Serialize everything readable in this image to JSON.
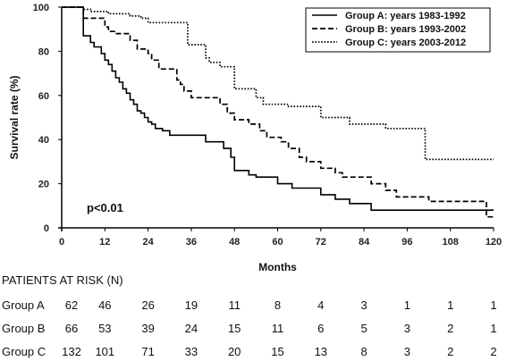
{
  "chart_data": {
    "type": "line",
    "ylabel": "Survival rate (%)",
    "xlabel": "Months",
    "xlim": [
      0,
      120
    ],
    "ylim": [
      0,
      100
    ],
    "x_ticks": [
      "0",
      "12",
      "24",
      "36",
      "48",
      "60",
      "72",
      "84",
      "96",
      "108",
      "120"
    ],
    "y_ticks": [
      "0",
      "20",
      "40",
      "60",
      "80",
      "100"
    ],
    "grid": false,
    "legend_position": "top-right",
    "annotation": "p<0.01",
    "series": [
      {
        "name": "Group A: years 1983-1992",
        "style": "solid",
        "points": [
          [
            0,
            100
          ],
          [
            6,
            100
          ],
          [
            6,
            87
          ],
          [
            8,
            87
          ],
          [
            8,
            84
          ],
          [
            9,
            84
          ],
          [
            9,
            82
          ],
          [
            11,
            82
          ],
          [
            11,
            79
          ],
          [
            12,
            79
          ],
          [
            12,
            76
          ],
          [
            13,
            76
          ],
          [
            13,
            74
          ],
          [
            14,
            74
          ],
          [
            14,
            71
          ],
          [
            15,
            71
          ],
          [
            15,
            68
          ],
          [
            16,
            68
          ],
          [
            16,
            66
          ],
          [
            17,
            66
          ],
          [
            17,
            63
          ],
          [
            18,
            63
          ],
          [
            18,
            61
          ],
          [
            19,
            61
          ],
          [
            19,
            58
          ],
          [
            20,
            58
          ],
          [
            20,
            56
          ],
          [
            21,
            56
          ],
          [
            21,
            53
          ],
          [
            22,
            53
          ],
          [
            22,
            52
          ],
          [
            23,
            52
          ],
          [
            23,
            50
          ],
          [
            24,
            50
          ],
          [
            24,
            48
          ],
          [
            25,
            48
          ],
          [
            25,
            47
          ],
          [
            26,
            47
          ],
          [
            26,
            45
          ],
          [
            28,
            45
          ],
          [
            28,
            44
          ],
          [
            30,
            44
          ],
          [
            30,
            42
          ],
          [
            40,
            42
          ],
          [
            40,
            39
          ],
          [
            45,
            39
          ],
          [
            45,
            36
          ],
          [
            47,
            36
          ],
          [
            47,
            32
          ],
          [
            48,
            32
          ],
          [
            48,
            26
          ],
          [
            52,
            26
          ],
          [
            52,
            24
          ],
          [
            54,
            24
          ],
          [
            54,
            23
          ],
          [
            60,
            23
          ],
          [
            60,
            20
          ],
          [
            64,
            20
          ],
          [
            64,
            18
          ],
          [
            72,
            18
          ],
          [
            72,
            15
          ],
          [
            76,
            15
          ],
          [
            76,
            13
          ],
          [
            80,
            13
          ],
          [
            80,
            11
          ],
          [
            86,
            11
          ],
          [
            86,
            8
          ],
          [
            120,
            8
          ]
        ]
      },
      {
        "name": "Group B: years 1993-2002",
        "style": "dashed",
        "points": [
          [
            0,
            100
          ],
          [
            6,
            100
          ],
          [
            6,
            95
          ],
          [
            12,
            95
          ],
          [
            12,
            91
          ],
          [
            13,
            91
          ],
          [
            13,
            89
          ],
          [
            15,
            89
          ],
          [
            15,
            88
          ],
          [
            19,
            88
          ],
          [
            19,
            85
          ],
          [
            21,
            85
          ],
          [
            21,
            81
          ],
          [
            24,
            81
          ],
          [
            24,
            79
          ],
          [
            25,
            79
          ],
          [
            25,
            76
          ],
          [
            27,
            76
          ],
          [
            27,
            72
          ],
          [
            32,
            72
          ],
          [
            32,
            67
          ],
          [
            33,
            67
          ],
          [
            33,
            65
          ],
          [
            34,
            65
          ],
          [
            34,
            62
          ],
          [
            36,
            62
          ],
          [
            36,
            59
          ],
          [
            44,
            59
          ],
          [
            44,
            56
          ],
          [
            46,
            56
          ],
          [
            46,
            52
          ],
          [
            48,
            52
          ],
          [
            48,
            49
          ],
          [
            52,
            49
          ],
          [
            52,
            47
          ],
          [
            55,
            47
          ],
          [
            55,
            44
          ],
          [
            57,
            44
          ],
          [
            57,
            41
          ],
          [
            61,
            41
          ],
          [
            61,
            39
          ],
          [
            63,
            39
          ],
          [
            63,
            36
          ],
          [
            66,
            36
          ],
          [
            66,
            32
          ],
          [
            68,
            32
          ],
          [
            68,
            30
          ],
          [
            72,
            30
          ],
          [
            72,
            27
          ],
          [
            76,
            27
          ],
          [
            76,
            25
          ],
          [
            78,
            25
          ],
          [
            78,
            23
          ],
          [
            86,
            23
          ],
          [
            86,
            20
          ],
          [
            90,
            20
          ],
          [
            90,
            17
          ],
          [
            93,
            17
          ],
          [
            93,
            14
          ],
          [
            102,
            14
          ],
          [
            102,
            12
          ],
          [
            118,
            12
          ],
          [
            118,
            5
          ],
          [
            120,
            5
          ]
        ]
      },
      {
        "name": "Group C: years 2003-2012",
        "style": "dotted",
        "points": [
          [
            0,
            100
          ],
          [
            6,
            100
          ],
          [
            6,
            99
          ],
          [
            8,
            99
          ],
          [
            8,
            98
          ],
          [
            13,
            98
          ],
          [
            13,
            97
          ],
          [
            19,
            97
          ],
          [
            19,
            96
          ],
          [
            22,
            96
          ],
          [
            22,
            95
          ],
          [
            24,
            95
          ],
          [
            24,
            93
          ],
          [
            35,
            93
          ],
          [
            35,
            83
          ],
          [
            40,
            83
          ],
          [
            40,
            77
          ],
          [
            41,
            77
          ],
          [
            41,
            75
          ],
          [
            44,
            75
          ],
          [
            44,
            73
          ],
          [
            48,
            73
          ],
          [
            48,
            63
          ],
          [
            54,
            63
          ],
          [
            54,
            59
          ],
          [
            56,
            59
          ],
          [
            56,
            56
          ],
          [
            63,
            56
          ],
          [
            63,
            55
          ],
          [
            72,
            55
          ],
          [
            72,
            50
          ],
          [
            80,
            50
          ],
          [
            80,
            47
          ],
          [
            90,
            47
          ],
          [
            90,
            45
          ],
          [
            101,
            45
          ],
          [
            101,
            31
          ],
          [
            120,
            31
          ]
        ]
      }
    ]
  },
  "risk_table": {
    "title": "PATIENTS AT RISK (N)",
    "months": [
      0,
      12,
      24,
      36,
      48,
      60,
      72,
      84,
      96,
      108,
      120
    ],
    "rows": [
      {
        "label": "Group A",
        "values": [
          "62",
          "46",
          "26",
          "19",
          "11",
          "8",
          "4",
          "3",
          "1",
          "1",
          "1"
        ]
      },
      {
        "label": "Group B",
        "values": [
          "66",
          "53",
          "39",
          "24",
          "15",
          "11",
          "6",
          "5",
          "3",
          "2",
          "1"
        ]
      },
      {
        "label": "Group C",
        "values": [
          "132",
          "101",
          "71",
          "33",
          "20",
          "15",
          "13",
          "8",
          "3",
          "2",
          "2"
        ]
      }
    ]
  }
}
